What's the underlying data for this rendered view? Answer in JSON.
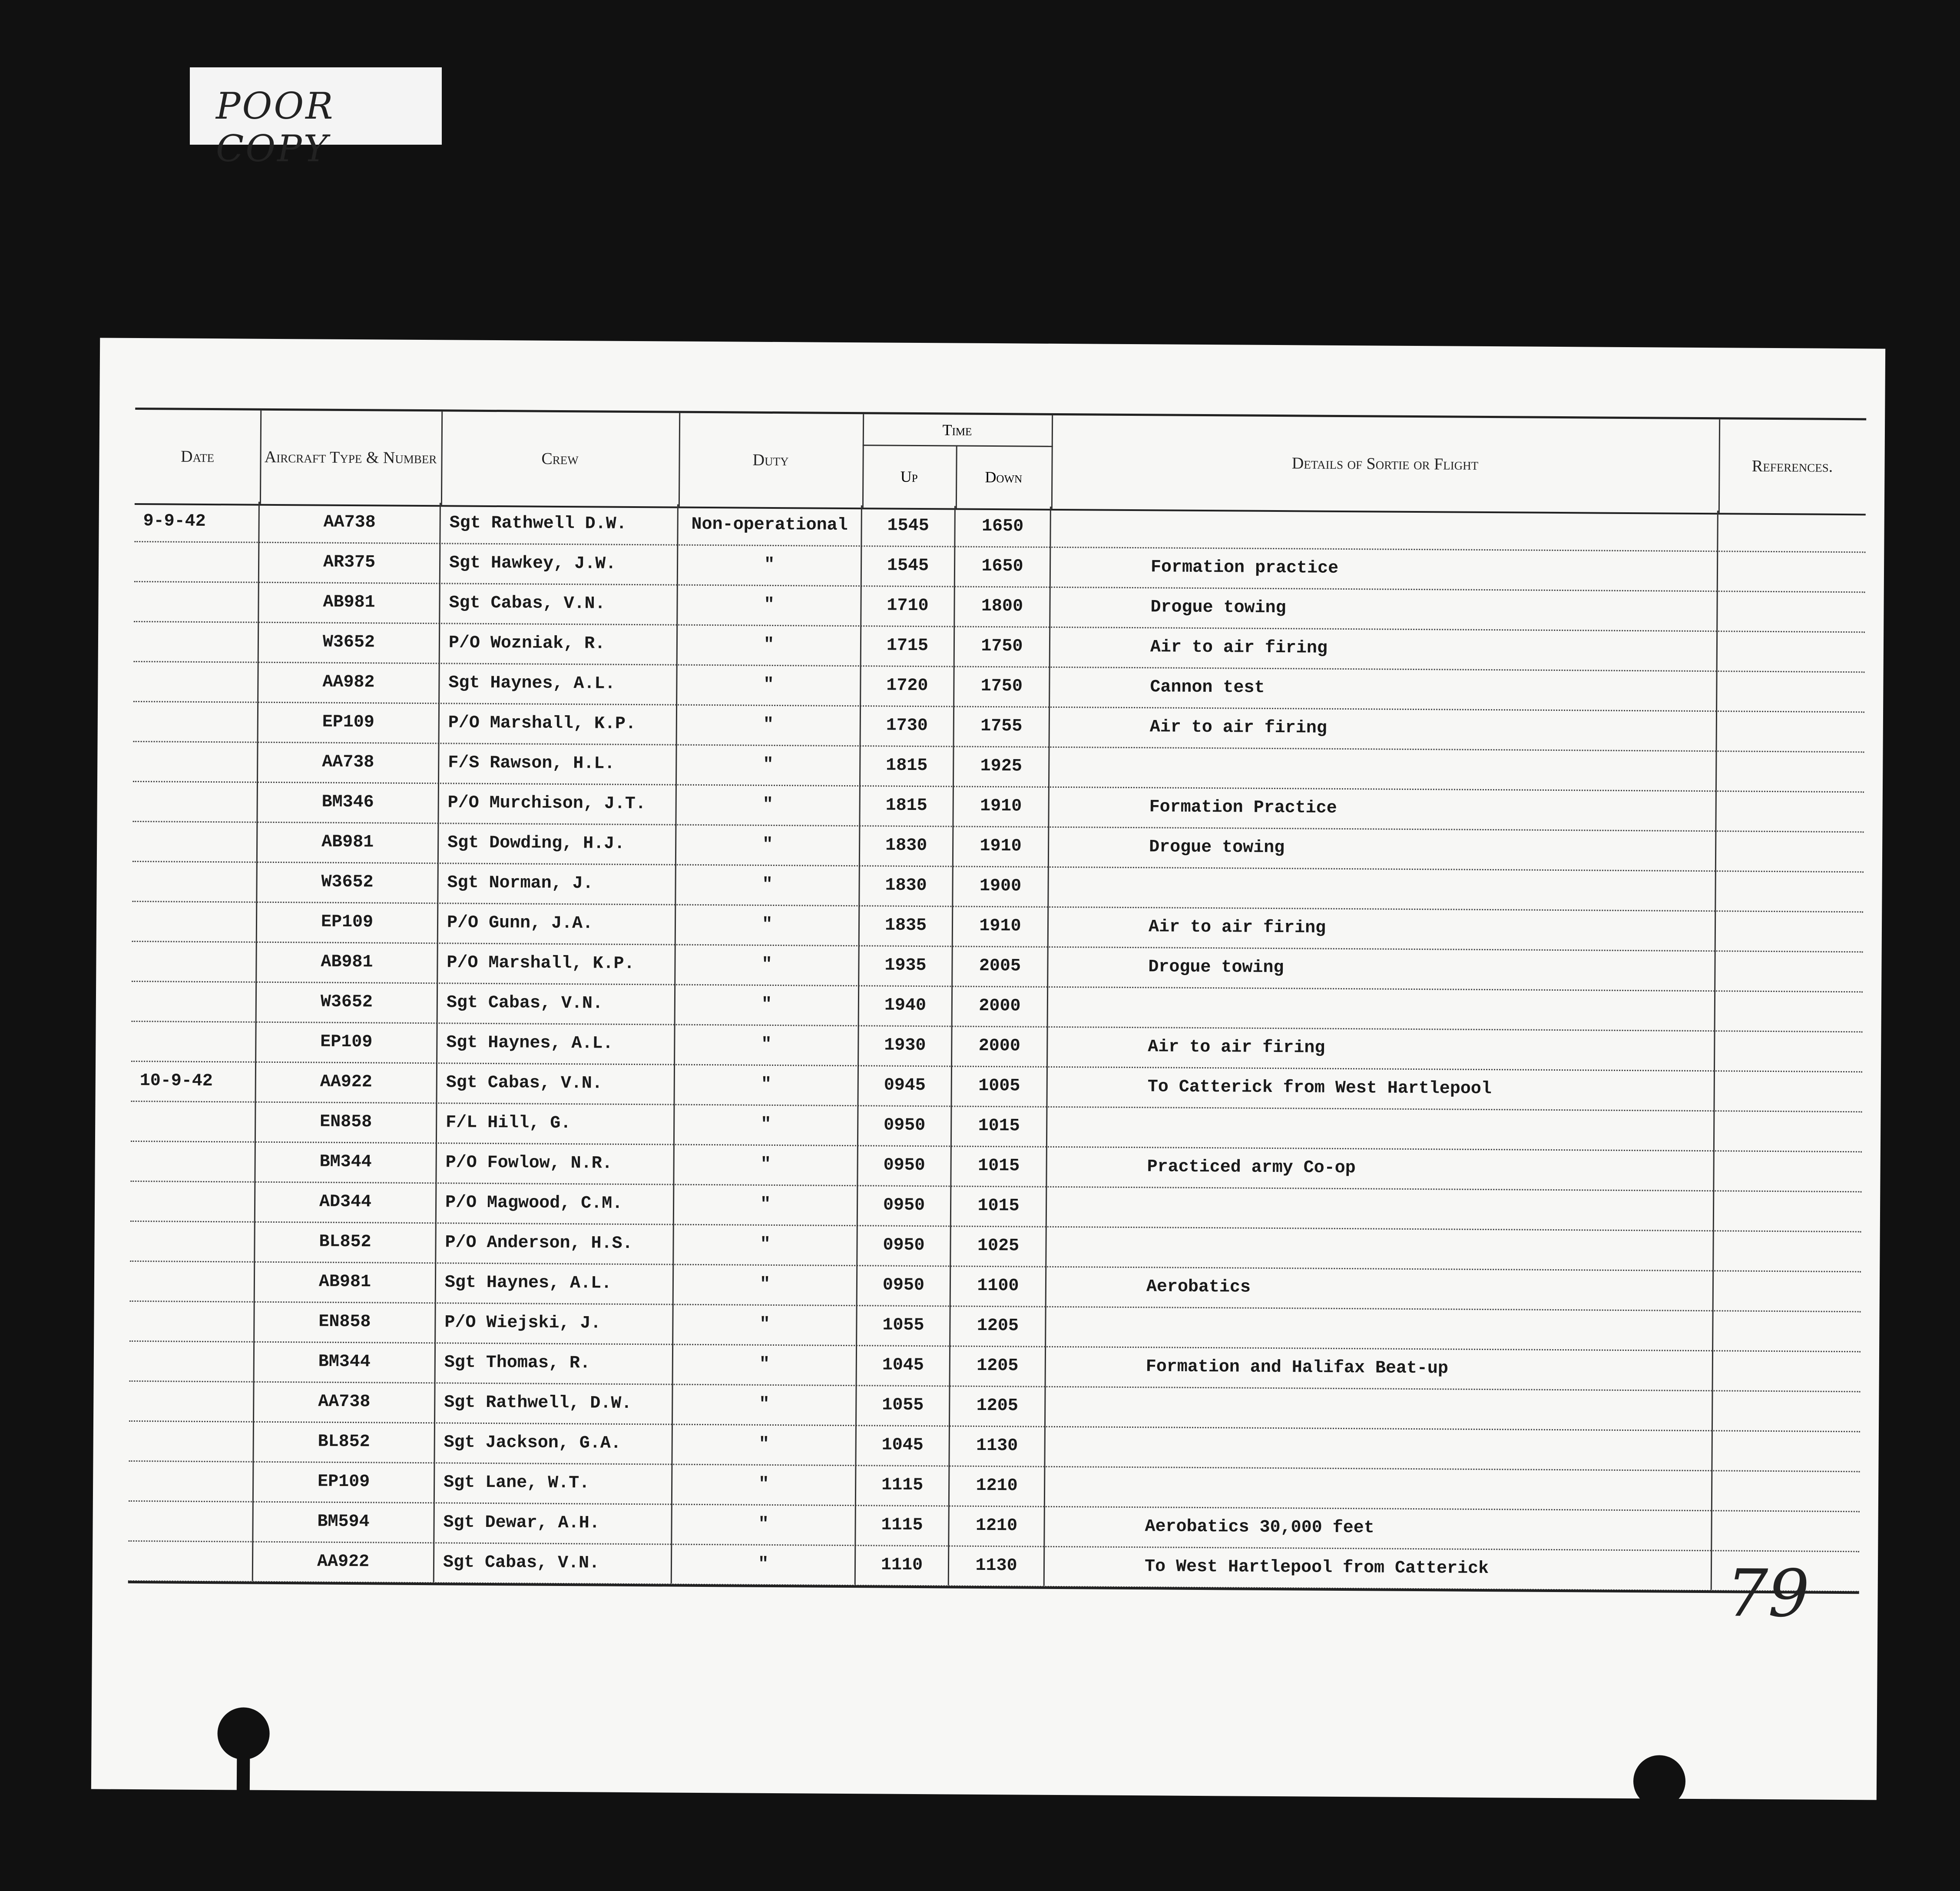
{
  "sticker": {
    "text": "POOR COPY"
  },
  "header": {
    "date": "Date",
    "aircraft": "Aircraft Type & Number",
    "crew": "Crew",
    "duty": "Duty",
    "time": "Time",
    "up": "Up",
    "down": "Down",
    "details": "Details of Sortie or Flight",
    "references": "References."
  },
  "rows": [
    {
      "date": "9-9-42",
      "aircraft": "AA738",
      "crew": "Sgt Rathwell D.W.",
      "duty": "Non-operational",
      "up": "1545",
      "down": "1650",
      "details": ""
    },
    {
      "date": "",
      "aircraft": "AR375",
      "crew": "Sgt Hawkey, J.W.",
      "duty": "\"",
      "up": "1545",
      "down": "1650",
      "details": "Formation practice"
    },
    {
      "date": "",
      "aircraft": "AB981",
      "crew": "Sgt Cabas, V.N.",
      "duty": "\"",
      "up": "1710",
      "down": "1800",
      "details": "Drogue towing"
    },
    {
      "date": "",
      "aircraft": "W3652",
      "crew": "P/O Wozniak, R.",
      "duty": "\"",
      "up": "1715",
      "down": "1750",
      "details": "Air to air firing"
    },
    {
      "date": "",
      "aircraft": "AA982",
      "crew": "Sgt Haynes, A.L.",
      "duty": "\"",
      "up": "1720",
      "down": "1750",
      "details": "Cannon test"
    },
    {
      "date": "",
      "aircraft": "EP109",
      "crew": "P/O Marshall, K.P.",
      "duty": "\"",
      "up": "1730",
      "down": "1755",
      "details": "Air to air firing"
    },
    {
      "date": "",
      "aircraft": "AA738",
      "crew": "F/S Rawson, H.L.",
      "duty": "\"",
      "up": "1815",
      "down": "1925",
      "details": ""
    },
    {
      "date": "",
      "aircraft": "BM346",
      "crew": "P/O Murchison, J.T.",
      "duty": "\"",
      "up": "1815",
      "down": "1910",
      "details": "Formation Practice"
    },
    {
      "date": "",
      "aircraft": "AB981",
      "crew": "Sgt Dowding, H.J.",
      "duty": "\"",
      "up": "1830",
      "down": "1910",
      "details": "Drogue towing"
    },
    {
      "date": "",
      "aircraft": "W3652",
      "crew": "Sgt Norman, J.",
      "duty": "\"",
      "up": "1830",
      "down": "1900",
      "details": ""
    },
    {
      "date": "",
      "aircraft": "EP109",
      "crew": "P/O Gunn, J.A.",
      "duty": "\"",
      "up": "1835",
      "down": "1910",
      "details": "Air to air firing"
    },
    {
      "date": "",
      "aircraft": "AB981",
      "crew": "P/O Marshall, K.P.",
      "duty": "\"",
      "up": "1935",
      "down": "2005",
      "details": "Drogue towing"
    },
    {
      "date": "",
      "aircraft": "W3652",
      "crew": "Sgt Cabas, V.N.",
      "duty": "\"",
      "up": "1940",
      "down": "2000",
      "details": ""
    },
    {
      "date": "",
      "aircraft": "EP109",
      "crew": "Sgt Haynes, A.L.",
      "duty": "\"",
      "up": "1930",
      "down": "2000",
      "details": "Air to air firing"
    },
    {
      "date": "10-9-42",
      "aircraft": "AA922",
      "crew": "Sgt Cabas, V.N.",
      "duty": "\"",
      "up": "0945",
      "down": "1005",
      "details": "To Catterick from West Hartlepool"
    },
    {
      "date": "",
      "aircraft": "EN858",
      "crew": "F/L Hill, G.",
      "duty": "\"",
      "up": "0950",
      "down": "1015",
      "details": ""
    },
    {
      "date": "",
      "aircraft": "BM344",
      "crew": "P/O Fowlow, N.R.",
      "duty": "\"",
      "up": "0950",
      "down": "1015",
      "details": "Practiced army Co-op"
    },
    {
      "date": "",
      "aircraft": "AD344",
      "crew": "P/O Magwood, C.M.",
      "duty": "\"",
      "up": "0950",
      "down": "1015",
      "details": ""
    },
    {
      "date": "",
      "aircraft": "BL852",
      "crew": "P/O Anderson, H.S.",
      "duty": "\"",
      "up": "0950",
      "down": "1025",
      "details": ""
    },
    {
      "date": "",
      "aircraft": "AB981",
      "crew": "Sgt Haynes, A.L.",
      "duty": "\"",
      "up": "0950",
      "down": "1100",
      "details": "Aerobatics"
    },
    {
      "date": "",
      "aircraft": "EN858",
      "crew": "P/O Wiejski, J.",
      "duty": "\"",
      "up": "1055",
      "down": "1205",
      "details": ""
    },
    {
      "date": "",
      "aircraft": "BM344",
      "crew": "Sgt Thomas, R.",
      "duty": "\"",
      "up": "1045",
      "down": "1205",
      "details": "Formation and Halifax Beat-up"
    },
    {
      "date": "",
      "aircraft": "AA738",
      "crew": "Sgt Rathwell, D.W.",
      "duty": "\"",
      "up": "1055",
      "down": "1205",
      "details": ""
    },
    {
      "date": "",
      "aircraft": "BL852",
      "crew": "Sgt Jackson, G.A.",
      "duty": "\"",
      "up": "1045",
      "down": "1130",
      "details": ""
    },
    {
      "date": "",
      "aircraft": "EP109",
      "crew": "Sgt Lane, W.T.",
      "duty": "\"",
      "up": "1115",
      "down": "1210",
      "details": ""
    },
    {
      "date": "",
      "aircraft": "BM594",
      "crew": "Sgt Dewar, A.H.",
      "duty": "\"",
      "up": "1115",
      "down": "1210",
      "details": "Aerobatics 30,000 feet"
    },
    {
      "date": "",
      "aircraft": "AA922",
      "crew": "Sgt Cabas, V.N.",
      "duty": "\"",
      "up": "1110",
      "down": "1130",
      "details": "To West Hartlepool from Catterick"
    }
  ],
  "page_number": "79"
}
